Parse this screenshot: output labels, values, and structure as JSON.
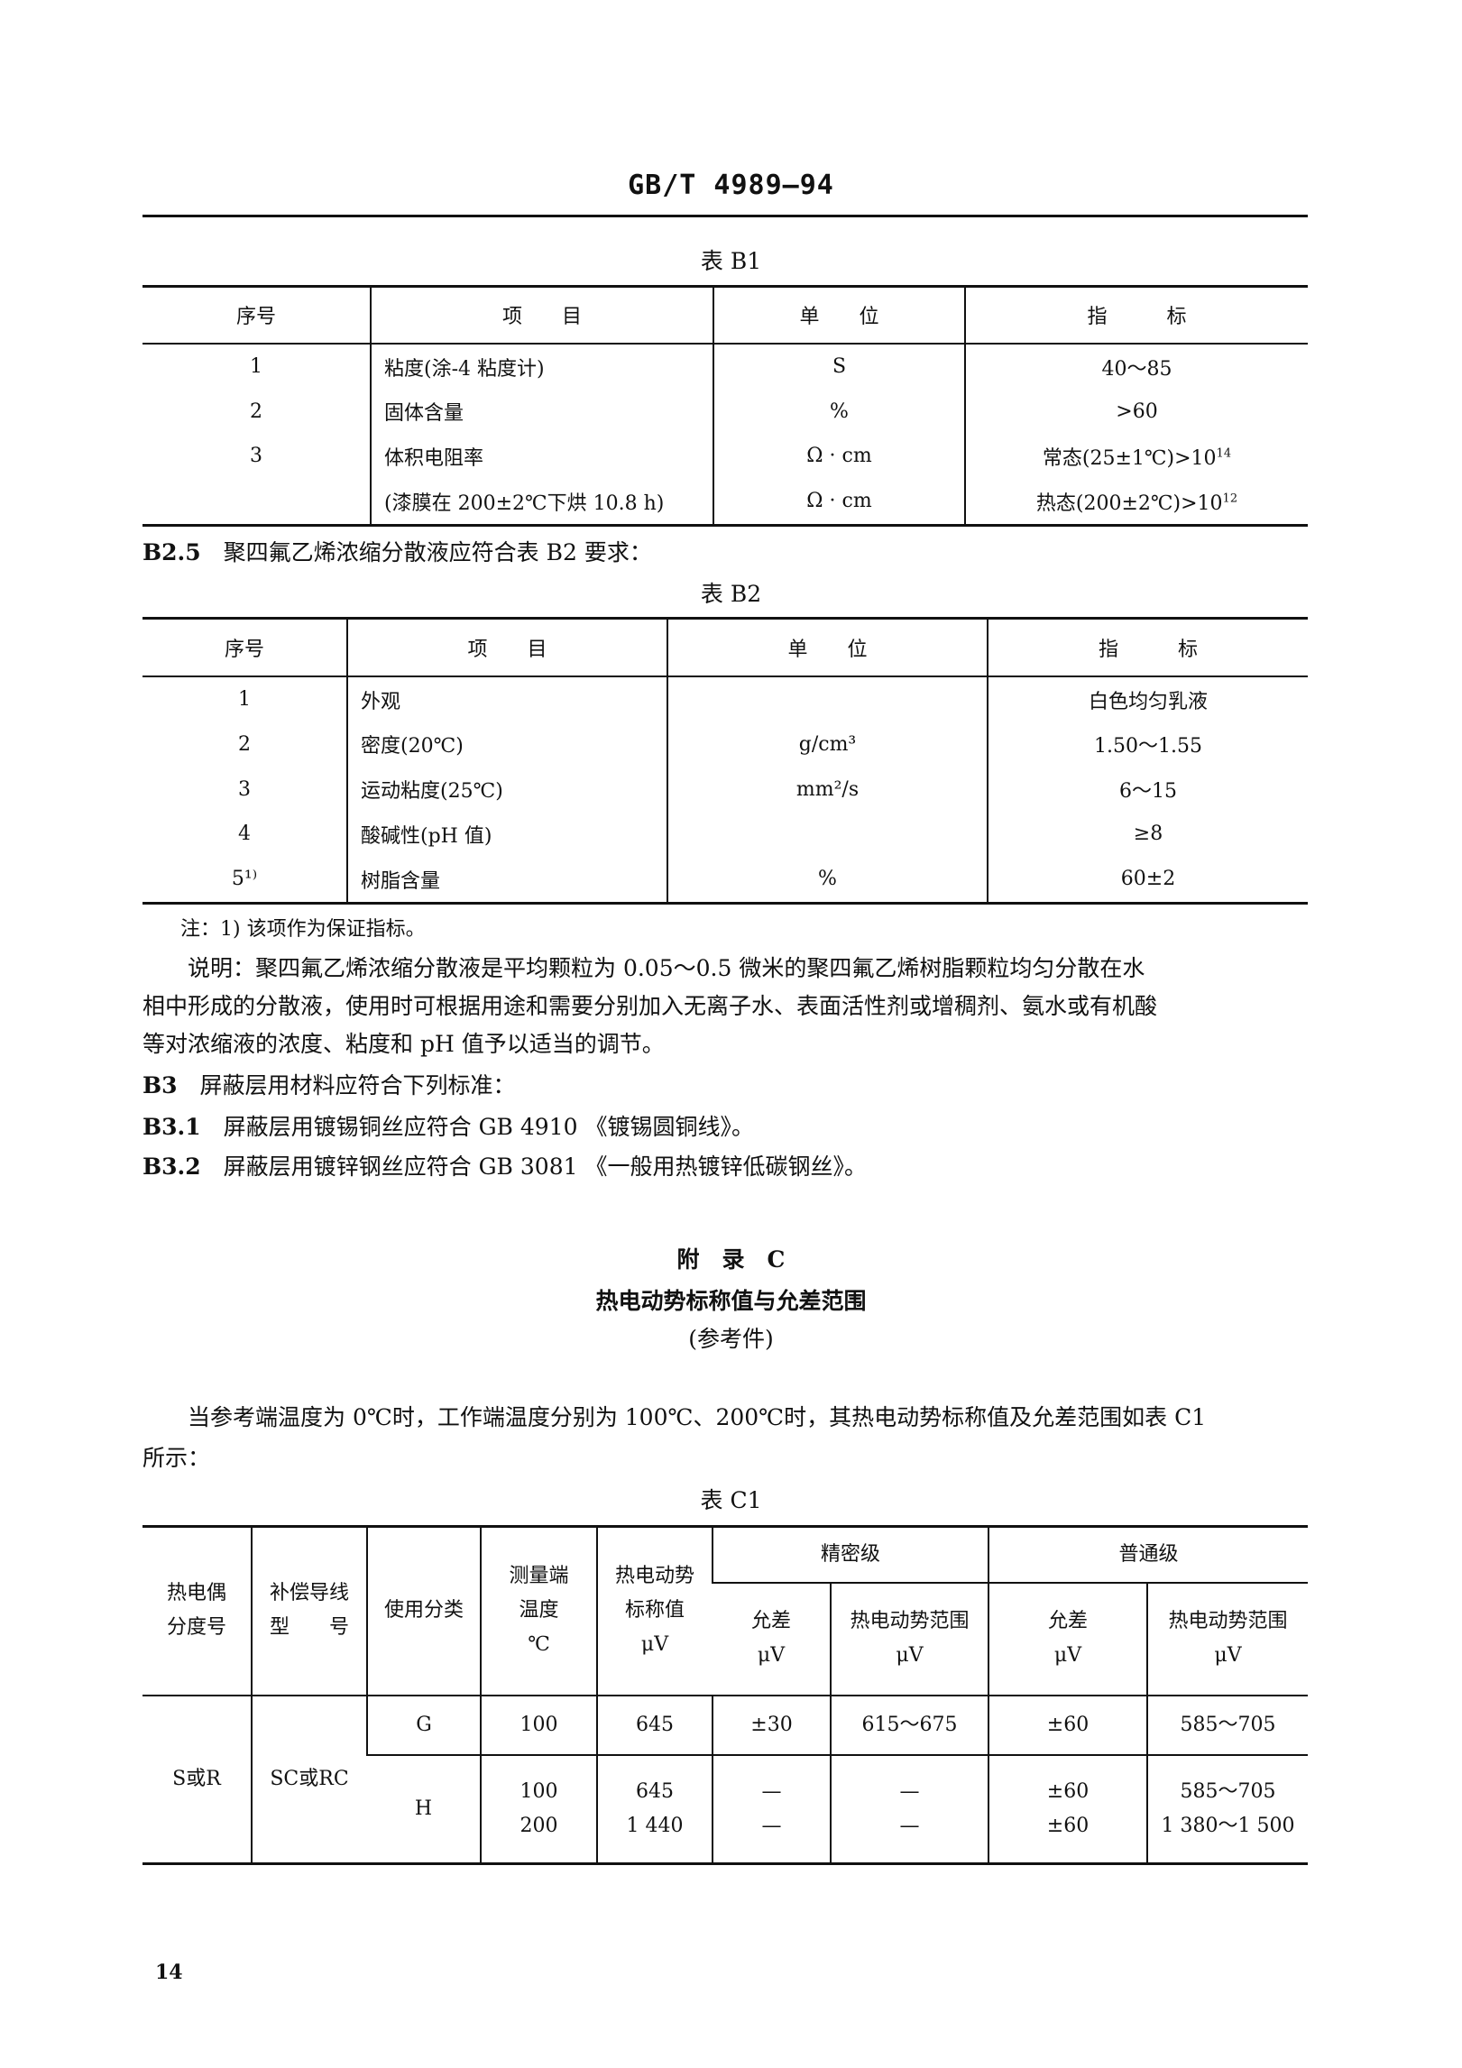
{
  "header": {
    "doc_number": "GB/T 4989—94"
  },
  "table_b1": {
    "caption": "表 B1",
    "headers": [
      "序号",
      "项　　目",
      "单　　位",
      "指　　　标"
    ],
    "rows": [
      {
        "no": "1",
        "item": "粘度(涂-4 粘度计)",
        "unit": "S",
        "value": "40～85"
      },
      {
        "no": "2",
        "item": "固体含量",
        "unit": "%",
        "value": ">60"
      },
      {
        "no": "3",
        "item": "体积电阻率",
        "unit": "Ω · cm",
        "value": "常态(25±1℃)>10",
        "sup": "14"
      },
      {
        "no": "",
        "item": "(漆膜在 200±2℃下烘 10.8 h)",
        "unit": "Ω · cm",
        "value": "热态(200±2℃)>10",
        "sup": "12"
      }
    ]
  },
  "b2_5": {
    "num": "B2.5",
    "text": "聚四氟乙烯浓缩分散液应符合表 B2 要求："
  },
  "table_b2": {
    "caption": "表 B2",
    "headers": [
      "序号",
      "项　　目",
      "单　　位",
      "指　　　标"
    ],
    "rows": [
      {
        "no": "1",
        "item": "外观",
        "unit": "",
        "value": "白色均匀乳液"
      },
      {
        "no": "2",
        "item": "密度(20℃)",
        "unit": "g/cm³",
        "value": "1.50～1.55"
      },
      {
        "no": "3",
        "item": "运动粘度(25℃)",
        "unit": "mm²/s",
        "value": "6～15"
      },
      {
        "no": "4",
        "item": "酸碱性(pH 值)",
        "unit": "",
        "value": "≥8"
      },
      {
        "no": "5¹⁾",
        "item": "树脂含量",
        "unit": "%",
        "value": "60±2"
      }
    ]
  },
  "note": "注：1) 该项作为保证指标。",
  "explanation": [
    "说明：聚四氟乙烯浓缩分散液是平均颗粒为 0.05～0.5 微米的聚四氟乙烯树脂颗粒均匀分散在水",
    "相中形成的分散液，使用时可根据用途和需要分别加入无离子水、表面活性剂或增稠剂、氨水或有机酸",
    "等对浓缩液的浓度、粘度和 pH 值予以适当的调节。"
  ],
  "b3": {
    "num": "B3",
    "text": "屏蔽层用材料应符合下列标准："
  },
  "b3_1": {
    "num": "B3.1",
    "text": "屏蔽层用镀锡铜丝应符合 GB 4910 《镀锡圆铜线》。"
  },
  "b3_2": {
    "num": "B3.2",
    "text": "屏蔽层用镀锌钢丝应符合 GB 3081 《一般用热镀锌低碳钢丝》。"
  },
  "appendix": {
    "label": "附　录　C",
    "title": "热电动势标称值与允差范围",
    "note": "(参考件)"
  },
  "intro": [
    "当参考端温度为 0℃时，工作端温度分别为 100℃、200℃时，其热电动势标称值及允差范围如表 C1",
    "所示："
  ],
  "table_c1": {
    "caption": "表 C1",
    "headers": {
      "thermocouple": [
        "热电偶",
        "分度号"
      ],
      "wire": [
        "补偿导线",
        "型　　号"
      ],
      "usage": "使用分类",
      "temp": [
        "测量端",
        "温度",
        "℃"
      ],
      "emf": [
        "热电动势",
        "标称值",
        "μV"
      ],
      "precision": "精密级",
      "normal": "普通级",
      "tol": [
        "允差",
        "μV"
      ],
      "range": [
        "热电动势范围",
        "μV"
      ]
    },
    "thermocouple": "S或R",
    "wire": "SC或RC",
    "rows": [
      {
        "usage": "G",
        "temp": [
          "100"
        ],
        "emf": [
          "645"
        ],
        "p_tol": [
          "±30"
        ],
        "p_range": [
          "615～675"
        ],
        "n_tol": [
          "±60"
        ],
        "n_range": [
          "585～705"
        ]
      },
      {
        "usage": "H",
        "temp": [
          "100",
          "200"
        ],
        "emf": [
          "645",
          "1 440"
        ],
        "p_tol": [
          "—",
          "—"
        ],
        "p_range": [
          "—",
          "—"
        ],
        "n_tol": [
          "±60",
          "±60"
        ],
        "n_range": [
          "585～705",
          "1 380～1 500"
        ]
      }
    ]
  },
  "page_number": "14"
}
